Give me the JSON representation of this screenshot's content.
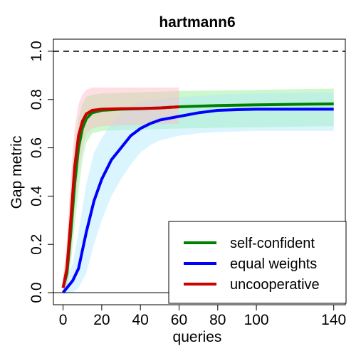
{
  "chart_data": {
    "type": "line",
    "title": "hartmann6",
    "xlabel": "queries",
    "ylabel": "Gap metric",
    "xlim": [
      -5,
      146
    ],
    "ylim": [
      -0.05,
      1.05
    ],
    "x_ticks": [
      0,
      20,
      40,
      60,
      80,
      100,
      140
    ],
    "y_ticks": [
      0.0,
      0.2,
      0.4,
      0.6,
      0.8,
      1.0
    ],
    "hlines": [
      {
        "y": 1.0,
        "style": "dashed",
        "color": "#000000"
      },
      {
        "y": 0.0,
        "style": "solid",
        "color": "#000000"
      }
    ],
    "legend_position": "bottom-right",
    "series": [
      {
        "name": "self-confident",
        "color": "#008000",
        "band_color": "#90ee90",
        "points": [
          [
            0,
            0.02
          ],
          [
            2,
            0.08
          ],
          [
            4,
            0.25
          ],
          [
            6,
            0.45
          ],
          [
            8,
            0.6
          ],
          [
            10,
            0.68
          ],
          [
            12,
            0.72
          ],
          [
            15,
            0.745
          ],
          [
            20,
            0.755
          ],
          [
            30,
            0.76
          ],
          [
            40,
            0.762
          ],
          [
            50,
            0.765
          ],
          [
            60,
            0.77
          ],
          [
            80,
            0.775
          ],
          [
            100,
            0.778
          ],
          [
            120,
            0.78
          ],
          [
            140,
            0.782
          ]
        ],
        "band_lower": [
          [
            0,
            0.0
          ],
          [
            2,
            0.02
          ],
          [
            4,
            0.12
          ],
          [
            6,
            0.28
          ],
          [
            8,
            0.42
          ],
          [
            10,
            0.55
          ],
          [
            12,
            0.62
          ],
          [
            15,
            0.66
          ],
          [
            20,
            0.67
          ],
          [
            40,
            0.675
          ],
          [
            60,
            0.68
          ],
          [
            100,
            0.685
          ],
          [
            140,
            0.69
          ]
        ],
        "band_upper": [
          [
            0,
            0.05
          ],
          [
            2,
            0.18
          ],
          [
            4,
            0.42
          ],
          [
            6,
            0.62
          ],
          [
            8,
            0.72
          ],
          [
            10,
            0.78
          ],
          [
            12,
            0.81
          ],
          [
            15,
            0.82
          ],
          [
            20,
            0.825
          ],
          [
            40,
            0.83
          ],
          [
            60,
            0.835
          ],
          [
            100,
            0.84
          ],
          [
            140,
            0.845
          ]
        ]
      },
      {
        "name": "equal weights",
        "color": "#0000ff",
        "band_color": "#b0e8ff",
        "points": [
          [
            0,
            0.0
          ],
          [
            5,
            0.05
          ],
          [
            8,
            0.1
          ],
          [
            12,
            0.25
          ],
          [
            16,
            0.38
          ],
          [
            20,
            0.47
          ],
          [
            25,
            0.55
          ],
          [
            30,
            0.6
          ],
          [
            35,
            0.65
          ],
          [
            40,
            0.68
          ],
          [
            45,
            0.7
          ],
          [
            50,
            0.715
          ],
          [
            60,
            0.73
          ],
          [
            70,
            0.745
          ],
          [
            80,
            0.755
          ],
          [
            90,
            0.758
          ],
          [
            100,
            0.76
          ],
          [
            120,
            0.76
          ],
          [
            140,
            0.76
          ]
        ],
        "band_lower": [
          [
            0,
            0.0
          ],
          [
            5,
            0.0
          ],
          [
            8,
            0.02
          ],
          [
            12,
            0.08
          ],
          [
            16,
            0.2
          ],
          [
            20,
            0.3
          ],
          [
            25,
            0.4
          ],
          [
            30,
            0.47
          ],
          [
            35,
            0.53
          ],
          [
            40,
            0.58
          ],
          [
            45,
            0.61
          ],
          [
            50,
            0.63
          ],
          [
            60,
            0.65
          ],
          [
            70,
            0.66
          ],
          [
            80,
            0.665
          ],
          [
            100,
            0.67
          ],
          [
            140,
            0.67
          ]
        ],
        "band_upper": [
          [
            0,
            0.02
          ],
          [
            5,
            0.12
          ],
          [
            8,
            0.25
          ],
          [
            12,
            0.45
          ],
          [
            16,
            0.58
          ],
          [
            20,
            0.64
          ],
          [
            25,
            0.7
          ],
          [
            30,
            0.74
          ],
          [
            35,
            0.77
          ],
          [
            40,
            0.79
          ],
          [
            50,
            0.8
          ],
          [
            60,
            0.81
          ],
          [
            80,
            0.82
          ],
          [
            100,
            0.825
          ],
          [
            140,
            0.83
          ]
        ]
      },
      {
        "name": "uncooperative",
        "color": "#cc0000",
        "band_color": "#ffb6c1",
        "points": [
          [
            0,
            0.02
          ],
          [
            2,
            0.1
          ],
          [
            4,
            0.3
          ],
          [
            6,
            0.52
          ],
          [
            8,
            0.65
          ],
          [
            10,
            0.71
          ],
          [
            12,
            0.74
          ],
          [
            15,
            0.755
          ],
          [
            20,
            0.76
          ],
          [
            30,
            0.762
          ],
          [
            40,
            0.763
          ],
          [
            50,
            0.765
          ],
          [
            60,
            0.77
          ]
        ],
        "band_lower": [
          [
            0,
            0.0
          ],
          [
            2,
            0.03
          ],
          [
            4,
            0.15
          ],
          [
            6,
            0.35
          ],
          [
            8,
            0.5
          ],
          [
            10,
            0.6
          ],
          [
            12,
            0.66
          ],
          [
            15,
            0.68
          ],
          [
            20,
            0.69
          ],
          [
            40,
            0.695
          ],
          [
            60,
            0.7
          ]
        ],
        "band_upper": [
          [
            0,
            0.06
          ],
          [
            2,
            0.22
          ],
          [
            4,
            0.48
          ],
          [
            6,
            0.68
          ],
          [
            8,
            0.78
          ],
          [
            10,
            0.82
          ],
          [
            12,
            0.84
          ],
          [
            15,
            0.85
          ],
          [
            20,
            0.85
          ],
          [
            40,
            0.85
          ],
          [
            60,
            0.85
          ]
        ]
      }
    ]
  }
}
